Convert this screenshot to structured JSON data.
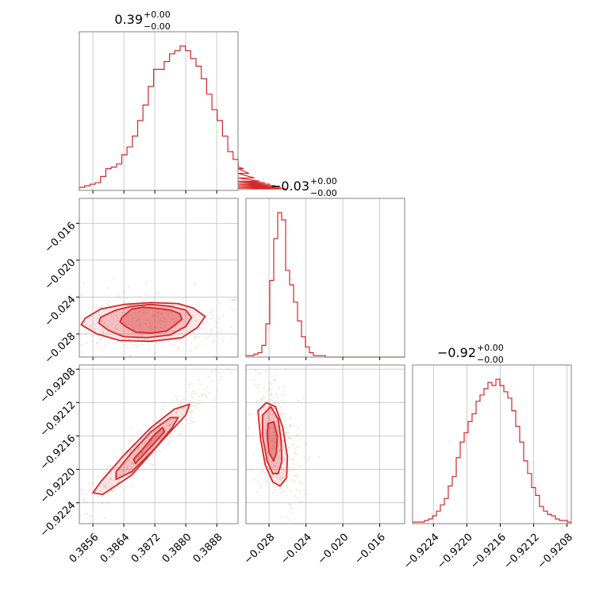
{
  "chart_data": {
    "type": "corner",
    "color": "#d62728",
    "grid": true,
    "parameters": [
      {
        "title": {
          "value": "0.39",
          "upper": "+0.00",
          "lower": "−0.00"
        },
        "range": [
          0.38525,
          0.38935
        ],
        "ticks": [
          0.3856,
          0.3864,
          0.3872,
          0.388,
          0.3888
        ],
        "tick_labels": [
          "0.3856",
          "0.3864",
          "0.3872",
          "0.3880",
          "0.3888"
        ],
        "histogram": {
          "edges_start": 0.38525,
          "bin_width": 0.000137,
          "counts": [
            2,
            3,
            4,
            5,
            9,
            14,
            15,
            17,
            23,
            28,
            35,
            45,
            55,
            67,
            78,
            78,
            83,
            88,
            90,
            93,
            90,
            85,
            80,
            72,
            62,
            52,
            45,
            35,
            25,
            20,
            15,
            14,
            11,
            8,
            6,
            5,
            4,
            3,
            2,
            1
          ]
        }
      },
      {
        "title": {
          "value": "−0.03",
          "upper": "+0.00",
          "lower": "−0.00"
        },
        "range": [
          -0.0305,
          -0.0133
        ],
        "ticks": [
          -0.028,
          -0.024,
          -0.02,
          -0.016
        ],
        "tick_labels": [
          "−0.028",
          "−0.024",
          "−0.020",
          "−0.016"
        ],
        "histogram": {
          "edges_start": -0.0305,
          "bin_width": 0.00043,
          "counts": [
            1,
            1,
            2,
            3,
            8,
            23,
            53,
            82,
            100,
            95,
            60,
            50,
            38,
            25,
            14,
            7,
            3,
            1,
            1,
            1,
            0,
            0,
            0,
            0,
            0,
            0,
            0,
            0,
            0,
            0,
            0,
            0,
            0,
            0,
            0,
            0,
            0,
            0,
            0,
            0
          ]
        }
      },
      {
        "title": {
          "value": "−0.92",
          "upper": "+0.00",
          "lower": "−0.00"
        },
        "range": [
          -0.92265,
          -0.92075
        ],
        "ticks": [
          -0.9224,
          -0.922,
          -0.9216,
          -0.9212,
          -0.9208
        ],
        "tick_labels": [
          "−0.9224",
          "−0.9220",
          "−0.9216",
          "−0.9212",
          "−0.9208"
        ],
        "histogram": {
          "edges_start": -0.92265,
          "bin_width": 4.75e-05,
          "counts": [
            1,
            1,
            1,
            2,
            3,
            5,
            8,
            12,
            16,
            24,
            30,
            42,
            52,
            58,
            65,
            70,
            78,
            82,
            86,
            90,
            88,
            92,
            88,
            84,
            80,
            72,
            62,
            52,
            40,
            32,
            23,
            18,
            11,
            8,
            6,
            5,
            3,
            2,
            2,
            1
          ]
        }
      }
    ],
    "pairs": [
      {
        "x_param": 0,
        "y_param": 1,
        "center": [
          0.38705,
          -0.02675
        ],
        "contours": [
          [
            [
              0.38635,
              -0.0262
            ],
            [
              0.3866,
              -0.0253
            ],
            [
              0.3869,
              -0.0251
            ],
            [
              0.3872,
              -0.0252
            ],
            [
              0.3876,
              -0.0254
            ],
            [
              0.38785,
              -0.0258
            ],
            [
              0.3879,
              -0.0264
            ],
            [
              0.3877,
              -0.0271
            ],
            [
              0.3875,
              -0.0277
            ],
            [
              0.3871,
              -0.0279
            ],
            [
              0.3867,
              -0.0278
            ],
            [
              0.38645,
              -0.0272
            ],
            [
              0.3863,
              -0.0267
            ]
          ],
          [
            [
              0.3858,
              -0.0262
            ],
            [
              0.3862,
              -0.0254
            ],
            [
              0.3866,
              -0.025
            ],
            [
              0.3871,
              -0.0248
            ],
            [
              0.3876,
              -0.025
            ],
            [
              0.388,
              -0.0254
            ],
            [
              0.38815,
              -0.0262
            ],
            [
              0.388,
              -0.0272
            ],
            [
              0.3876,
              -0.0281
            ],
            [
              0.387,
              -0.0284
            ],
            [
              0.3864,
              -0.0283
            ],
            [
              0.386,
              -0.0276
            ],
            [
              0.38575,
              -0.0268
            ]
          ],
          [
            [
              0.3854,
              -0.0263
            ],
            [
              0.3858,
              -0.0253
            ],
            [
              0.3864,
              -0.0248
            ],
            [
              0.3871,
              -0.0246
            ],
            [
              0.3878,
              -0.0247
            ],
            [
              0.3882,
              -0.0252
            ],
            [
              0.3885,
              -0.0261
            ],
            [
              0.3883,
              -0.0273
            ],
            [
              0.3879,
              -0.0284
            ],
            [
              0.3871,
              -0.0288
            ],
            [
              0.3863,
              -0.0287
            ],
            [
              0.3857,
              -0.028
            ],
            [
              0.3853,
              -0.027
            ]
          ]
        ]
      },
      {
        "x_param": 0,
        "y_param": 2,
        "center": [
          0.38705,
          -0.92168
        ],
        "contours": [
          [
            [
              0.38665,
              -0.92188
            ],
            [
              0.3869,
              -0.92175
            ],
            [
              0.3872,
              -0.92158
            ],
            [
              0.3874,
              -0.9215
            ],
            [
              0.38745,
              -0.92155
            ],
            [
              0.3872,
              -0.92168
            ],
            [
              0.3869,
              -0.92183
            ],
            [
              0.3867,
              -0.92193
            ]
          ],
          [
            [
              0.3862,
              -0.92203
            ],
            [
              0.3866,
              -0.9218
            ],
            [
              0.3871,
              -0.92155
            ],
            [
              0.3876,
              -0.92138
            ],
            [
              0.3878,
              -0.92138
            ],
            [
              0.38765,
              -0.9215
            ],
            [
              0.3872,
              -0.92175
            ],
            [
              0.3866,
              -0.92203
            ],
            [
              0.3862,
              -0.92212
            ]
          ],
          [
            [
              0.3858,
              -0.92215
            ],
            [
              0.3864,
              -0.92183
            ],
            [
              0.3871,
              -0.9215
            ],
            [
              0.3877,
              -0.92128
            ],
            [
              0.3881,
              -0.92122
            ],
            [
              0.388,
              -0.92135
            ],
            [
              0.3874,
              -0.92165
            ],
            [
              0.3866,
              -0.92207
            ],
            [
              0.38585,
              -0.9223
            ],
            [
              0.3856,
              -0.92228
            ]
          ]
        ]
      },
      {
        "x_param": 1,
        "y_param": 2,
        "center": [
          -0.02725,
          -0.92168
        ],
        "contours": [
          [
            [
              -0.0281,
              -0.92145
            ],
            [
              -0.0275,
              -0.92143
            ],
            [
              -0.0271,
              -0.9216
            ],
            [
              -0.0272,
              -0.9218
            ],
            [
              -0.0275,
              -0.9219
            ],
            [
              -0.028,
              -0.9218
            ],
            [
              -0.0282,
              -0.9216
            ]
          ],
          [
            [
              -0.0287,
              -0.92135
            ],
            [
              -0.0278,
              -0.92125
            ],
            [
              -0.027,
              -0.9214
            ],
            [
              -0.0267,
              -0.92165
            ],
            [
              -0.0266,
              -0.9219
            ],
            [
              -0.027,
              -0.92205
            ],
            [
              -0.0276,
              -0.92205
            ],
            [
              -0.0282,
              -0.9219
            ],
            [
              -0.0287,
              -0.9216
            ]
          ],
          [
            [
              -0.0292,
              -0.9213
            ],
            [
              -0.0283,
              -0.9212
            ],
            [
              -0.0273,
              -0.92125
            ],
            [
              -0.0265,
              -0.9215
            ],
            [
              -0.026,
              -0.92185
            ],
            [
              -0.0261,
              -0.9221
            ],
            [
              -0.0268,
              -0.9222
            ],
            [
              -0.0276,
              -0.92215
            ],
            [
              -0.0284,
              -0.92195
            ],
            [
              -0.0289,
              -0.92165
            ]
          ]
        ]
      }
    ]
  }
}
